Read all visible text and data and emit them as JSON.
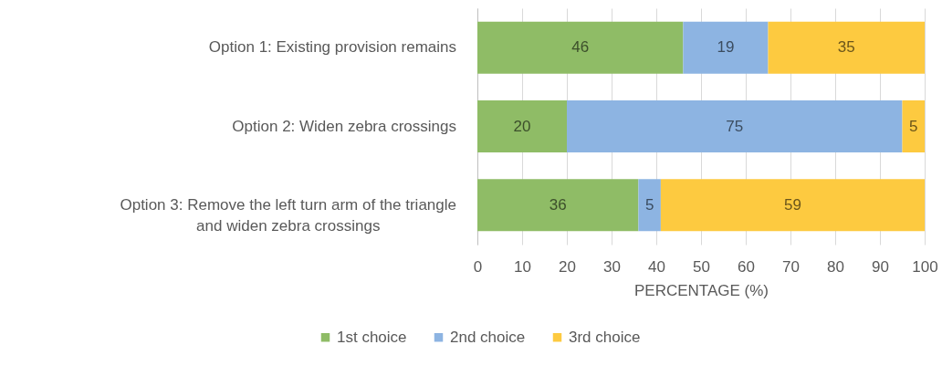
{
  "chart_data": {
    "type": "bar",
    "orientation": "horizontal",
    "stacked": true,
    "categories": [
      "Option 1: Existing provision remains",
      "Option 2: Widen zebra crossings",
      "Option 3: Remove the left turn arm of the triangle and widen zebra crossings"
    ],
    "series": [
      {
        "name": "1st choice",
        "color": "#8fbc66",
        "values": [
          46,
          20,
          36
        ]
      },
      {
        "name": "2nd choice",
        "color": "#8db4e2",
        "values": [
          19,
          75,
          5
        ]
      },
      {
        "name": "3rd choice",
        "color": "#fdca40",
        "values": [
          35,
          5,
          59
        ]
      }
    ],
    "xlabel": "PERCENTAGE (%)",
    "xlim": [
      0,
      100
    ],
    "xticks": [
      0,
      10,
      20,
      30,
      40,
      50,
      60,
      70,
      80,
      90,
      100
    ],
    "grid": "x",
    "legend": "bottom",
    "data_labels": true
  }
}
